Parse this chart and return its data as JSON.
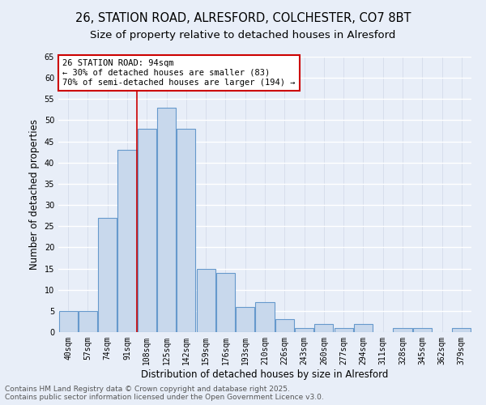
{
  "title1": "26, STATION ROAD, ALRESFORD, COLCHESTER, CO7 8BT",
  "title2": "Size of property relative to detached houses in Alresford",
  "xlabel": "Distribution of detached houses by size in Alresford",
  "ylabel": "Number of detached properties",
  "categories": [
    "40sqm",
    "57sqm",
    "74sqm",
    "91sqm",
    "108sqm",
    "125sqm",
    "142sqm",
    "159sqm",
    "176sqm",
    "193sqm",
    "210sqm",
    "226sqm",
    "243sqm",
    "260sqm",
    "277sqm",
    "294sqm",
    "311sqm",
    "328sqm",
    "345sqm",
    "362sqm",
    "379sqm"
  ],
  "values": [
    5,
    5,
    27,
    43,
    48,
    53,
    48,
    15,
    14,
    6,
    7,
    3,
    1,
    2,
    1,
    2,
    0,
    1,
    1,
    0,
    1
  ],
  "bar_color": "#c8d8ec",
  "bar_edge_color": "#6699cc",
  "bg_color": "#e8eef8",
  "grid_color": "#d0d8e8",
  "vline_x": 3.5,
  "vline_color": "#cc0000",
  "annotation_text": "26 STATION ROAD: 94sqm\n← 30% of detached houses are smaller (83)\n70% of semi-detached houses are larger (194) →",
  "annotation_box_color": "#ffffff",
  "annotation_edge_color": "#cc0000",
  "ylim": [
    0,
    65
  ],
  "yticks": [
    0,
    5,
    10,
    15,
    20,
    25,
    30,
    35,
    40,
    45,
    50,
    55,
    60,
    65
  ],
  "footer": "Contains HM Land Registry data © Crown copyright and database right 2025.\nContains public sector information licensed under the Open Government Licence v3.0.",
  "title_fontsize": 10.5,
  "subtitle_fontsize": 9.5,
  "axis_label_fontsize": 8.5,
  "tick_fontsize": 7,
  "annotation_fontsize": 7.5,
  "footer_fontsize": 6.5
}
